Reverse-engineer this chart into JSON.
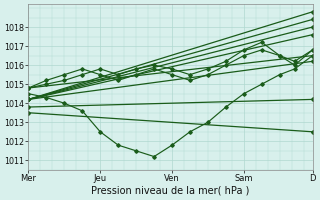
{
  "title": "Pression niveau de la mer( hPa )",
  "bg_color": "#d8f0ec",
  "grid_color": "#b0d8d0",
  "line_color": "#1a5c1a",
  "ylim": [
    1010.5,
    1019.2
  ],
  "yticks": [
    1011,
    1012,
    1013,
    1014,
    1015,
    1016,
    1017,
    1018
  ],
  "x_days": [
    "Mer",
    "Jeu",
    "Ven",
    "Sam",
    "D"
  ],
  "x_positions": [
    0,
    48,
    96,
    144,
    190
  ],
  "total_hours": 190,
  "straight_lines": [
    {
      "x": [
        0,
        190
      ],
      "y": [
        1014.2,
        1018.8
      ]
    },
    {
      "x": [
        0,
        190
      ],
      "y": [
        1014.2,
        1018.4
      ]
    },
    {
      "x": [
        0,
        190
      ],
      "y": [
        1014.2,
        1018.0
      ]
    },
    {
      "x": [
        0,
        190
      ],
      "y": [
        1014.2,
        1017.6
      ]
    },
    {
      "x": [
        0,
        190
      ],
      "y": [
        1014.2,
        1016.2
      ]
    },
    {
      "x": [
        0,
        190
      ],
      "y": [
        1013.8,
        1014.2
      ]
    },
    {
      "x": [
        0,
        190
      ],
      "y": [
        1013.5,
        1012.5
      ]
    },
    {
      "x": [
        0,
        190
      ],
      "y": [
        1014.8,
        1016.5
      ]
    }
  ],
  "wavy_series": [
    {
      "x": [
        0,
        12,
        24,
        36,
        48,
        60,
        72,
        84,
        96,
        108,
        120,
        132,
        144,
        156,
        168,
        178,
        190
      ],
      "y": [
        1014.5,
        1014.3,
        1014.0,
        1013.6,
        1012.5,
        1011.8,
        1011.5,
        1011.2,
        1011.8,
        1012.5,
        1013.0,
        1013.8,
        1014.5,
        1015.0,
        1015.5,
        1015.8,
        1016.5
      ]
    },
    {
      "x": [
        0,
        12,
        24,
        36,
        48,
        60,
        72,
        84,
        96,
        108,
        120,
        132,
        144,
        156,
        168,
        178,
        190
      ],
      "y": [
        1014.8,
        1015.2,
        1015.5,
        1015.8,
        1015.5,
        1015.2,
        1015.5,
        1015.8,
        1015.5,
        1015.2,
        1015.5,
        1016.0,
        1016.5,
        1016.8,
        1016.5,
        1016.2,
        1016.8
      ]
    },
    {
      "x": [
        0,
        12,
        24,
        36,
        48,
        60,
        72,
        84,
        96,
        108,
        120,
        132,
        144,
        156,
        168,
        178,
        190
      ],
      "y": [
        1014.8,
        1015.0,
        1015.2,
        1015.5,
        1015.8,
        1015.5,
        1015.8,
        1016.0,
        1015.8,
        1015.5,
        1015.8,
        1016.2,
        1016.8,
        1017.2,
        1016.5,
        1016.0,
        1016.8
      ]
    }
  ]
}
